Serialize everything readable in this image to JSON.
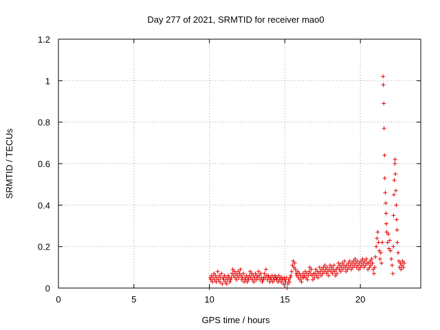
{
  "chart_data": {
    "type": "scatter",
    "title": "Day 277 of 2021, SRMTID for receiver mao0",
    "xlabel": "GPS time / hours",
    "ylabel": "SRMTID / TECUs",
    "xlim": [
      0,
      24
    ],
    "ylim": [
      0,
      1.2
    ],
    "xticks": [
      0,
      5,
      10,
      15,
      20
    ],
    "yticks": [
      0,
      0.2,
      0.4,
      0.6,
      0.8,
      1,
      1.2
    ],
    "xtick_labels": [
      "0",
      "5",
      "10",
      "15",
      "20"
    ],
    "ytick_labels": [
      "0",
      "0.2",
      "0.4",
      "0.6",
      "0.8",
      "1",
      "1.2"
    ],
    "grid": true,
    "marker": "+",
    "color": "#e00000",
    "series": [
      {
        "name": "mao0",
        "points": [
          [
            10.0,
            0.0
          ],
          [
            10.05,
            0.05
          ],
          [
            10.1,
            0.04
          ],
          [
            10.15,
            0.06
          ],
          [
            10.2,
            0.03
          ],
          [
            10.25,
            0.05
          ],
          [
            10.3,
            0.07
          ],
          [
            10.35,
            0.04
          ],
          [
            10.4,
            0.06
          ],
          [
            10.45,
            0.03
          ],
          [
            10.5,
            0.05
          ],
          [
            10.55,
            0.08
          ],
          [
            10.6,
            0.04
          ],
          [
            10.65,
            0.06
          ],
          [
            10.7,
            0.03
          ],
          [
            10.75,
            0.05
          ],
          [
            10.8,
            0.07
          ],
          [
            10.85,
            0.02
          ],
          [
            10.9,
            0.05
          ],
          [
            10.95,
            0.04
          ],
          [
            11.0,
            0.06
          ],
          [
            11.05,
            0.03
          ],
          [
            11.1,
            0.05
          ],
          [
            11.15,
            0.02
          ],
          [
            11.2,
            0.04
          ],
          [
            11.25,
            0.06
          ],
          [
            11.3,
            0.05
          ],
          [
            11.35,
            0.03
          ],
          [
            11.4,
            0.04
          ],
          [
            11.45,
            0.05
          ],
          [
            11.5,
            0.07
          ],
          [
            11.55,
            0.09
          ],
          [
            11.6,
            0.06
          ],
          [
            11.65,
            0.08
          ],
          [
            11.7,
            0.05
          ],
          [
            11.75,
            0.07
          ],
          [
            11.8,
            0.04
          ],
          [
            11.85,
            0.06
          ],
          [
            11.9,
            0.08
          ],
          [
            11.95,
            0.05
          ],
          [
            12.0,
            0.07
          ],
          [
            12.05,
            0.09
          ],
          [
            12.1,
            0.06
          ],
          [
            12.15,
            0.04
          ],
          [
            12.2,
            0.05
          ],
          [
            12.25,
            0.07
          ],
          [
            12.3,
            0.03
          ],
          [
            12.35,
            0.05
          ],
          [
            12.4,
            0.04
          ],
          [
            12.45,
            0.06
          ],
          [
            12.5,
            0.03
          ],
          [
            12.55,
            0.05
          ],
          [
            12.6,
            0.04
          ],
          [
            12.65,
            0.06
          ],
          [
            12.7,
            0.08
          ],
          [
            12.75,
            0.05
          ],
          [
            12.8,
            0.07
          ],
          [
            12.85,
            0.04
          ],
          [
            12.9,
            0.06
          ],
          [
            12.95,
            0.03
          ],
          [
            13.0,
            0.05
          ],
          [
            13.05,
            0.07
          ],
          [
            13.1,
            0.04
          ],
          [
            13.15,
            0.06
          ],
          [
            13.2,
            0.05
          ],
          [
            13.25,
            0.08
          ],
          [
            13.3,
            0.06
          ],
          [
            13.35,
            0.04
          ],
          [
            13.4,
            0.07
          ],
          [
            13.45,
            0.05
          ],
          [
            13.5,
            0.03
          ],
          [
            13.55,
            0.04
          ],
          [
            13.6,
            0.05
          ],
          [
            13.65,
            0.07
          ],
          [
            13.7,
            0.05
          ],
          [
            13.75,
            0.09
          ],
          [
            13.8,
            0.06
          ],
          [
            13.85,
            0.04
          ],
          [
            13.9,
            0.06
          ],
          [
            13.95,
            0.05
          ],
          [
            14.0,
            0.03
          ],
          [
            14.05,
            0.05
          ],
          [
            14.1,
            0.04
          ],
          [
            14.15,
            0.06
          ],
          [
            14.2,
            0.03
          ],
          [
            14.25,
            0.05
          ],
          [
            14.3,
            0.04
          ],
          [
            14.35,
            0.06
          ],
          [
            14.4,
            0.05
          ],
          [
            14.45,
            0.04
          ],
          [
            14.5,
            0.05
          ],
          [
            14.55,
            0.03
          ],
          [
            14.6,
            0.06
          ],
          [
            14.65,
            0.04
          ],
          [
            14.7,
            0.05
          ],
          [
            14.75,
            0.03
          ],
          [
            14.8,
            0.05
          ],
          [
            14.85,
            0.04
          ],
          [
            14.9,
            0.02
          ],
          [
            14.95,
            0.05
          ],
          [
            15.0,
            0.04
          ],
          [
            15.05,
            0.03
          ],
          [
            15.1,
            0.05
          ],
          [
            15.15,
            0.0
          ],
          [
            15.2,
            0.02
          ],
          [
            15.25,
            0.04
          ],
          [
            15.3,
            0.03
          ],
          [
            15.35,
            0.05
          ],
          [
            15.4,
            0.06
          ],
          [
            15.45,
            0.08
          ],
          [
            15.5,
            0.11
          ],
          [
            15.55,
            0.13
          ],
          [
            15.6,
            0.1
          ],
          [
            15.65,
            0.12
          ],
          [
            15.7,
            0.09
          ],
          [
            15.75,
            0.07
          ],
          [
            15.8,
            0.06
          ],
          [
            15.85,
            0.08
          ],
          [
            15.9,
            0.05
          ],
          [
            15.95,
            0.07
          ],
          [
            16.0,
            0.04
          ],
          [
            16.05,
            0.06
          ],
          [
            16.1,
            0.03
          ],
          [
            16.15,
            0.05
          ],
          [
            16.2,
            0.07
          ],
          [
            16.25,
            0.05
          ],
          [
            16.3,
            0.06
          ],
          [
            16.35,
            0.08
          ],
          [
            16.4,
            0.05
          ],
          [
            16.45,
            0.07
          ],
          [
            16.5,
            0.04
          ],
          [
            16.55,
            0.06
          ],
          [
            16.6,
            0.08
          ],
          [
            16.65,
            0.1
          ],
          [
            16.7,
            0.07
          ],
          [
            16.75,
            0.09
          ],
          [
            16.8,
            0.06
          ],
          [
            16.85,
            0.04
          ],
          [
            16.9,
            0.07
          ],
          [
            16.95,
            0.05
          ],
          [
            17.0,
            0.07
          ],
          [
            17.05,
            0.09
          ],
          [
            17.1,
            0.06
          ],
          [
            17.15,
            0.08
          ],
          [
            17.2,
            0.05
          ],
          [
            17.25,
            0.07
          ],
          [
            17.3,
            0.1
          ],
          [
            17.35,
            0.08
          ],
          [
            17.4,
            0.06
          ],
          [
            17.45,
            0.09
          ],
          [
            17.5,
            0.07
          ],
          [
            17.55,
            0.1
          ],
          [
            17.6,
            0.08
          ],
          [
            17.65,
            0.11
          ],
          [
            17.7,
            0.09
          ],
          [
            17.75,
            0.07
          ],
          [
            17.8,
            0.1
          ],
          [
            17.85,
            0.08
          ],
          [
            17.9,
            0.06
          ],
          [
            17.95,
            0.09
          ],
          [
            18.0,
            0.11
          ],
          [
            18.05,
            0.08
          ],
          [
            18.1,
            0.1
          ],
          [
            18.15,
            0.07
          ],
          [
            18.2,
            0.09
          ],
          [
            18.25,
            0.11
          ],
          [
            18.3,
            0.08
          ],
          [
            18.35,
            0.06
          ],
          [
            18.4,
            0.09
          ],
          [
            18.45,
            0.07
          ],
          [
            18.5,
            0.1
          ],
          [
            18.55,
            0.12
          ],
          [
            18.6,
            0.09
          ],
          [
            18.65,
            0.11
          ],
          [
            18.7,
            0.08
          ],
          [
            18.75,
            0.1
          ],
          [
            18.8,
            0.12
          ],
          [
            18.85,
            0.09
          ],
          [
            18.9,
            0.11
          ],
          [
            18.95,
            0.13
          ],
          [
            19.0,
            0.1
          ],
          [
            19.05,
            0.08
          ],
          [
            19.1,
            0.11
          ],
          [
            19.15,
            0.09
          ],
          [
            19.2,
            0.12
          ],
          [
            19.25,
            0.1
          ],
          [
            19.3,
            0.13
          ],
          [
            19.35,
            0.11
          ],
          [
            19.4,
            0.09
          ],
          [
            19.45,
            0.12
          ],
          [
            19.5,
            0.1
          ],
          [
            19.55,
            0.13
          ],
          [
            19.6,
            0.11
          ],
          [
            19.65,
            0.14
          ],
          [
            19.7,
            0.12
          ],
          [
            19.75,
            0.1
          ],
          [
            19.8,
            0.13
          ],
          [
            19.85,
            0.11
          ],
          [
            19.9,
            0.09
          ],
          [
            19.95,
            0.12
          ],
          [
            20.0,
            0.1
          ],
          [
            20.05,
            0.13
          ],
          [
            20.1,
            0.11
          ],
          [
            20.15,
            0.14
          ],
          [
            20.2,
            0.12
          ],
          [
            20.25,
            0.1
          ],
          [
            20.3,
            0.13
          ],
          [
            20.35,
            0.11
          ],
          [
            20.4,
            0.14
          ],
          [
            20.45,
            0.12
          ],
          [
            20.5,
            0.09
          ],
          [
            20.55,
            0.12
          ],
          [
            20.6,
            0.1
          ],
          [
            20.65,
            0.13
          ],
          [
            20.7,
            0.11
          ],
          [
            20.75,
            0.14
          ],
          [
            20.8,
            0.12
          ],
          [
            20.85,
            0.09
          ],
          [
            20.9,
            0.07
          ],
          [
            20.95,
            0.1
          ],
          [
            21.0,
            0.15
          ],
          [
            21.05,
            0.2
          ],
          [
            21.1,
            0.24
          ],
          [
            21.15,
            0.27
          ],
          [
            21.2,
            0.22
          ],
          [
            21.25,
            0.18
          ],
          [
            21.3,
            0.14
          ],
          [
            21.35,
            0.17
          ],
          [
            21.4,
            0.12
          ],
          [
            21.45,
            0.22
          ],
          [
            21.5,
            1.02
          ],
          [
            21.52,
            0.98
          ],
          [
            21.55,
            0.89
          ],
          [
            21.57,
            0.77
          ],
          [
            21.6,
            0.64
          ],
          [
            21.62,
            0.53
          ],
          [
            21.65,
            0.46
          ],
          [
            21.68,
            0.41
          ],
          [
            21.7,
            0.36
          ],
          [
            21.72,
            0.31
          ],
          [
            21.75,
            0.27
          ],
          [
            21.8,
            0.22
          ],
          [
            21.85,
            0.26
          ],
          [
            21.9,
            0.19
          ],
          [
            21.95,
            0.23
          ],
          [
            22.0,
            0.18
          ],
          [
            22.05,
            0.14
          ],
          [
            22.1,
            0.11
          ],
          [
            22.15,
            0.07
          ],
          [
            22.18,
            0.2
          ],
          [
            22.2,
            0.35
          ],
          [
            22.22,
            0.45
          ],
          [
            22.25,
            0.52
          ],
          [
            22.28,
            0.6
          ],
          [
            22.3,
            0.62
          ],
          [
            22.32,
            0.55
          ],
          [
            22.35,
            0.47
          ],
          [
            22.38,
            0.4
          ],
          [
            22.4,
            0.33
          ],
          [
            22.43,
            0.28
          ],
          [
            22.45,
            0.22
          ],
          [
            22.5,
            0.17
          ],
          [
            22.55,
            0.13
          ],
          [
            22.6,
            0.1
          ],
          [
            22.65,
            0.12
          ],
          [
            22.7,
            0.09
          ],
          [
            22.75,
            0.11
          ],
          [
            22.8,
            0.13
          ],
          [
            22.85,
            0.1
          ],
          [
            22.9,
            0.12
          ]
        ]
      }
    ]
  }
}
